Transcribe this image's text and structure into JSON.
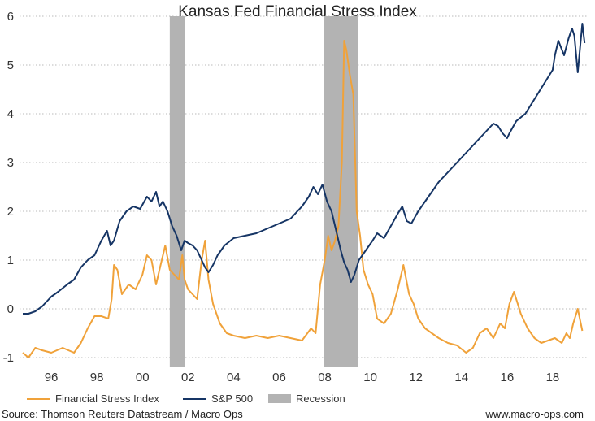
{
  "chart_data": {
    "type": "line",
    "title": "Kansas Fed Financial Stress Index",
    "xlabel": "",
    "ylabel": "",
    "xlim": [
      1994.75,
      2019.5
    ],
    "ylim": [
      -1.2,
      6.2
    ],
    "grid": true,
    "legend_position": "bottom",
    "y_ticks": [
      -1,
      0,
      1,
      2,
      3,
      4,
      5,
      6
    ],
    "y_tick_labels": [
      "-1",
      "0",
      "1",
      "2",
      "3",
      "4",
      "5",
      "6"
    ],
    "x_ticks": [
      1996,
      1998,
      2000,
      2002,
      2004,
      2006,
      2008,
      2010,
      2012,
      2014,
      2016,
      2018
    ],
    "x_tick_labels": [
      "96",
      "98",
      "00",
      "02",
      "04",
      "06",
      "08",
      "10",
      "12",
      "14",
      "16",
      "18"
    ],
    "recessions": [
      {
        "name": "Recession",
        "start": 2001.2,
        "end": 2001.85
      },
      {
        "name": "Recession",
        "start": 2007.95,
        "end": 2009.45
      }
    ],
    "series": [
      {
        "name": "Financial Stress Index",
        "color": "#f0a23a",
        "x": [
          1994.75,
          1995.0,
          1995.3,
          1995.6,
          1996.0,
          1996.5,
          1997.0,
          1997.3,
          1997.6,
          1997.9,
          1998.2,
          1998.5,
          1998.65,
          1998.75,
          1998.9,
          1999.1,
          1999.4,
          1999.7,
          2000.0,
          2000.2,
          2000.4,
          2000.6,
          2000.8,
          2001.0,
          2001.2,
          2001.4,
          2001.6,
          2001.75,
          2001.85,
          2002.0,
          2002.2,
          2002.4,
          2002.6,
          2002.75,
          2002.9,
          2003.1,
          2003.4,
          2003.7,
          2004.0,
          2004.5,
          2005.0,
          2005.5,
          2006.0,
          2006.5,
          2007.0,
          2007.4,
          2007.6,
          2007.8,
          2008.0,
          2008.15,
          2008.3,
          2008.45,
          2008.6,
          2008.75,
          2008.85,
          2008.95,
          2009.1,
          2009.25,
          2009.4,
          2009.55,
          2009.7,
          2009.9,
          2010.1,
          2010.3,
          2010.6,
          2010.9,
          2011.2,
          2011.45,
          2011.7,
          2011.9,
          2012.1,
          2012.4,
          2012.7,
          2013.0,
          2013.4,
          2013.8,
          2014.2,
          2014.5,
          2014.8,
          2015.1,
          2015.4,
          2015.7,
          2015.9,
          2016.1,
          2016.3,
          2016.6,
          2016.9,
          2017.2,
          2017.5,
          2017.8,
          2018.1,
          2018.4,
          2018.6,
          2018.75,
          2018.9,
          2019.1,
          2019.3
        ],
        "values": [
          -0.9,
          -1.0,
          -0.8,
          -0.85,
          -0.9,
          -0.8,
          -0.9,
          -0.7,
          -0.4,
          -0.15,
          -0.15,
          -0.2,
          0.2,
          0.9,
          0.8,
          0.3,
          0.5,
          0.4,
          0.7,
          1.1,
          1.0,
          0.5,
          0.9,
          1.3,
          0.8,
          0.7,
          0.6,
          1.1,
          0.6,
          0.4,
          0.3,
          0.2,
          1.0,
          1.4,
          0.6,
          0.1,
          -0.3,
          -0.5,
          -0.55,
          -0.6,
          -0.55,
          -0.6,
          -0.55,
          -0.6,
          -0.65,
          -0.4,
          -0.5,
          0.5,
          1.0,
          1.5,
          1.2,
          1.4,
          1.7,
          3.0,
          5.5,
          5.3,
          4.8,
          4.4,
          2.0,
          1.5,
          0.8,
          0.5,
          0.3,
          -0.2,
          -0.3,
          -0.1,
          0.4,
          0.9,
          0.3,
          0.1,
          -0.2,
          -0.4,
          -0.5,
          -0.6,
          -0.7,
          -0.75,
          -0.9,
          -0.8,
          -0.5,
          -0.4,
          -0.6,
          -0.3,
          -0.4,
          0.1,
          0.35,
          -0.1,
          -0.4,
          -0.6,
          -0.7,
          -0.65,
          -0.6,
          -0.7,
          -0.5,
          -0.6,
          -0.3,
          0.0,
          -0.45
        ]
      },
      {
        "name": "S&P 500",
        "color": "#163565",
        "x": [
          1994.75,
          1995.0,
          1995.3,
          1995.6,
          1996.0,
          1996.3,
          1996.7,
          1997.0,
          1997.3,
          1997.6,
          1997.9,
          1998.2,
          1998.45,
          1998.6,
          1998.75,
          1999.0,
          1999.3,
          1999.6,
          1999.9,
          2000.2,
          2000.4,
          2000.6,
          2000.75,
          2000.9,
          2001.1,
          2001.3,
          2001.5,
          2001.7,
          2001.85,
          2002.0,
          2002.2,
          2002.4,
          2002.6,
          2002.75,
          2002.9,
          2003.1,
          2003.3,
          2003.6,
          2004.0,
          2004.5,
          2005.0,
          2005.5,
          2006.0,
          2006.5,
          2007.0,
          2007.3,
          2007.5,
          2007.7,
          2007.9,
          2008.1,
          2008.3,
          2008.5,
          2008.7,
          2008.85,
          2009.0,
          2009.15,
          2009.3,
          2009.5,
          2009.8,
          2010.1,
          2010.3,
          2010.6,
          2010.9,
          2011.2,
          2011.4,
          2011.6,
          2011.8,
          2012.1,
          2012.4,
          2012.7,
          2013.0,
          2013.4,
          2013.8,
          2014.2,
          2014.6,
          2015.0,
          2015.4,
          2015.6,
          2015.8,
          2016.0,
          2016.1,
          2016.4,
          2016.8,
          2017.2,
          2017.6,
          2018.0,
          2018.1,
          2018.25,
          2018.5,
          2018.7,
          2018.85,
          2018.95,
          2019.1,
          2019.3,
          2019.4
        ],
        "values": [
          -0.1,
          -0.1,
          -0.05,
          0.05,
          0.25,
          0.35,
          0.5,
          0.6,
          0.85,
          1.0,
          1.1,
          1.4,
          1.6,
          1.3,
          1.4,
          1.8,
          2.0,
          2.1,
          2.05,
          2.3,
          2.2,
          2.4,
          2.1,
          2.2,
          2.0,
          1.7,
          1.5,
          1.2,
          1.4,
          1.35,
          1.3,
          1.2,
          1.0,
          0.85,
          0.75,
          0.9,
          1.1,
          1.3,
          1.45,
          1.5,
          1.55,
          1.65,
          1.75,
          1.85,
          2.1,
          2.3,
          2.5,
          2.35,
          2.55,
          2.2,
          2.0,
          1.6,
          1.2,
          0.95,
          0.8,
          0.55,
          0.7,
          1.0,
          1.2,
          1.4,
          1.55,
          1.45,
          1.7,
          1.95,
          2.1,
          1.8,
          1.75,
          2.0,
          2.2,
          2.4,
          2.6,
          2.8,
          3.0,
          3.2,
          3.4,
          3.6,
          3.8,
          3.75,
          3.6,
          3.5,
          3.6,
          3.85,
          4.0,
          4.3,
          4.6,
          4.9,
          5.2,
          5.5,
          5.2,
          5.55,
          5.75,
          5.6,
          4.85,
          5.85,
          5.45
        ]
      }
    ],
    "legend": [
      {
        "label": "Financial Stress Index",
        "kind": "line",
        "color": "#f0a23a"
      },
      {
        "label": "S&P 500",
        "kind": "line",
        "color": "#163565"
      },
      {
        "label": "Recession",
        "kind": "band",
        "color": "#b3b3b3"
      }
    ]
  },
  "footer": {
    "source": "Source: Thomson Reuters Datastream / Macro Ops",
    "website": "www.macro-ops.com"
  }
}
